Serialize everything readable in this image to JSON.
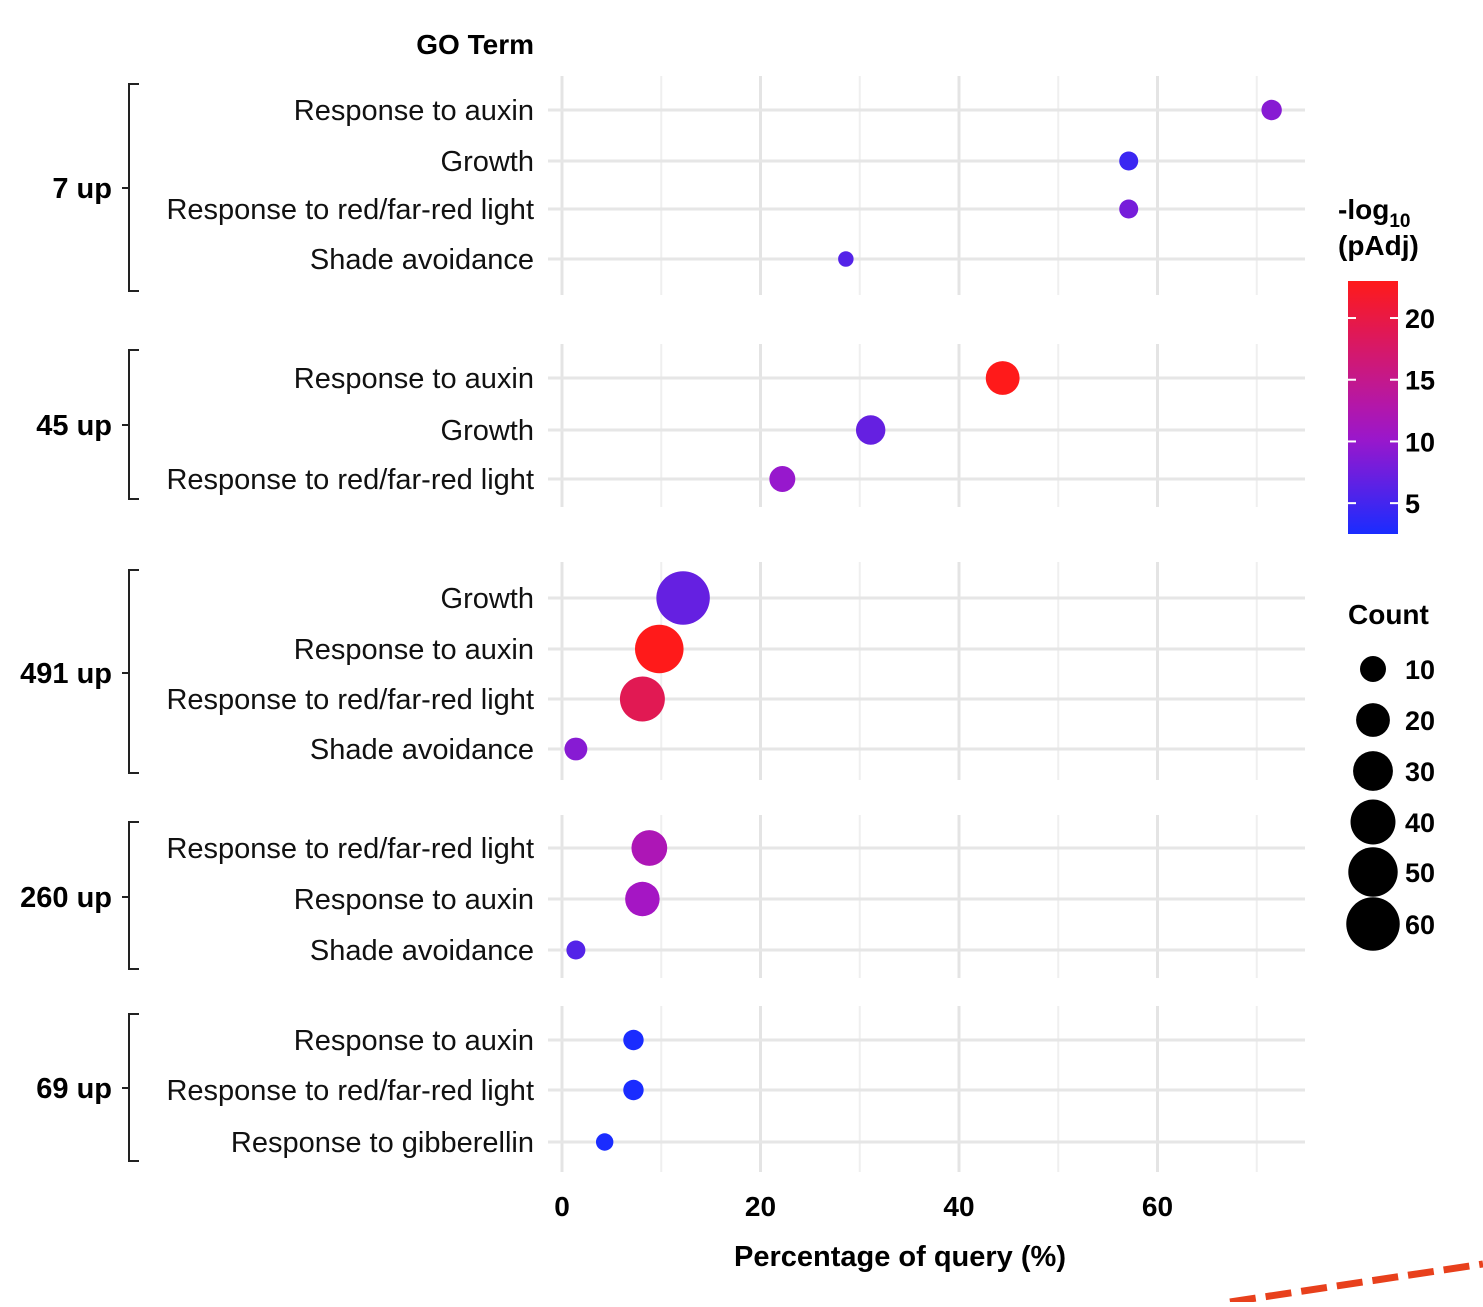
{
  "chart_data": {
    "type": "scatter",
    "subtype": "bubble",
    "y_header": "GO Term",
    "xlabel": "Percentage of query (%)",
    "xlim": [
      0,
      75
    ],
    "xticks": [
      0,
      20,
      40,
      60
    ],
    "groups": [
      {
        "label": "7 up",
        "points": [
          {
            "term": "Response to auxin",
            "x": 71.5,
            "neglog10_padj": 9,
            "count": 5
          },
          {
            "term": "Growth",
            "x": 57.1,
            "neglog10_padj": 4.5,
            "count": 4
          },
          {
            "term": "Response to red/far-red light",
            "x": 57.1,
            "neglog10_padj": 8,
            "count": 4
          },
          {
            "term": "Shade avoidance",
            "x": 28.6,
            "neglog10_padj": 6,
            "count": 2
          }
        ]
      },
      {
        "label": "45 up",
        "points": [
          {
            "term": "Response to auxin",
            "x": 44.4,
            "neglog10_padj": 23,
            "count": 20
          },
          {
            "term": "Growth",
            "x": 31.1,
            "neglog10_padj": 7,
            "count": 14
          },
          {
            "term": "Response to red/far-red light",
            "x": 22.2,
            "neglog10_padj": 10,
            "count": 10
          }
        ]
      },
      {
        "label": "491 up",
        "points": [
          {
            "term": "Growth",
            "x": 12.2,
            "neglog10_padj": 7,
            "count": 60
          },
          {
            "term": "Response to auxin",
            "x": 9.8,
            "neglog10_padj": 23,
            "count": 48
          },
          {
            "term": "Response to red/far-red light",
            "x": 8.1,
            "neglog10_padj": 19,
            "count": 40
          },
          {
            "term": "Shade avoidance",
            "x": 1.4,
            "neglog10_padj": 9,
            "count": 7
          }
        ]
      },
      {
        "label": "260 up",
        "points": [
          {
            "term": "Response to red/far-red light",
            "x": 8.8,
            "neglog10_padj": 12,
            "count": 23
          },
          {
            "term": "Response to auxin",
            "x": 8.1,
            "neglog10_padj": 11,
            "count": 21
          },
          {
            "term": "Shade avoidance",
            "x": 1.4,
            "neglog10_padj": 6,
            "count": 4
          }
        ]
      },
      {
        "label": "69 up",
        "points": [
          {
            "term": "Response to auxin",
            "x": 7.2,
            "neglog10_padj": 2.5,
            "count": 5
          },
          {
            "term": "Response to red/far-red light",
            "x": 7.2,
            "neglog10_padj": 2.5,
            "count": 5
          },
          {
            "term": "Response to gibberellin",
            "x": 4.3,
            "neglog10_padj": 2.5,
            "count": 3
          }
        ]
      }
    ],
    "color_legend": {
      "title_main": "-log",
      "title_subscript": "10",
      "title_line2": "(pAdj)",
      "min": 2.5,
      "max": 23,
      "ticks": [
        5,
        10,
        15,
        20
      ],
      "low_color": "#1a2cff",
      "mid_color": "#a316c8",
      "high_color": "#ff1a1a"
    },
    "size_legend": {
      "title": "Count",
      "values": [
        10,
        20,
        30,
        40,
        50,
        60
      ]
    }
  }
}
